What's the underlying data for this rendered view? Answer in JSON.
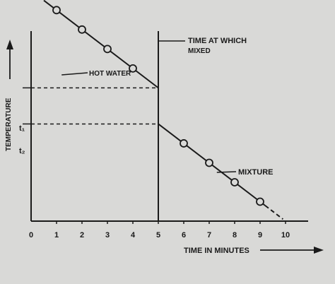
{
  "chart_data": {
    "type": "line",
    "title": "",
    "xlabel": "TIME IN MINUTES",
    "ylabel": "TEMPERATURE",
    "x_ticks": [
      "0",
      "1",
      "2",
      "3",
      "4",
      "5",
      "6",
      "7",
      "8",
      "9",
      "10"
    ],
    "y_ticks": [
      "t₁",
      "t₂"
    ],
    "xlim": [
      0,
      10
    ],
    "grid": false,
    "mix_time": 5,
    "mix_annotation": [
      "TIME AT WHICH",
      "MIXED"
    ],
    "series": [
      {
        "name": "HOT WATER",
        "x": [
          1,
          2,
          3,
          4
        ],
        "y": [
          7.6,
          6.9,
          6.2,
          5.5
        ],
        "line_x": [
          0.5,
          5.0
        ],
        "line_y": [
          7.95,
          4.8
        ]
      },
      {
        "name": "MIXTURE",
        "x": [
          6,
          7,
          8,
          9
        ],
        "y": [
          2.8,
          2.1,
          1.4,
          0.7
        ],
        "line_x": [
          5.0,
          10.0
        ],
        "line_y": [
          3.5,
          0.0
        ]
      }
    ],
    "reference_levels": [
      4.8,
      3.5
    ],
    "colors": {
      "background": "#d9d9d7",
      "ink": "#1a1a1a"
    }
  }
}
